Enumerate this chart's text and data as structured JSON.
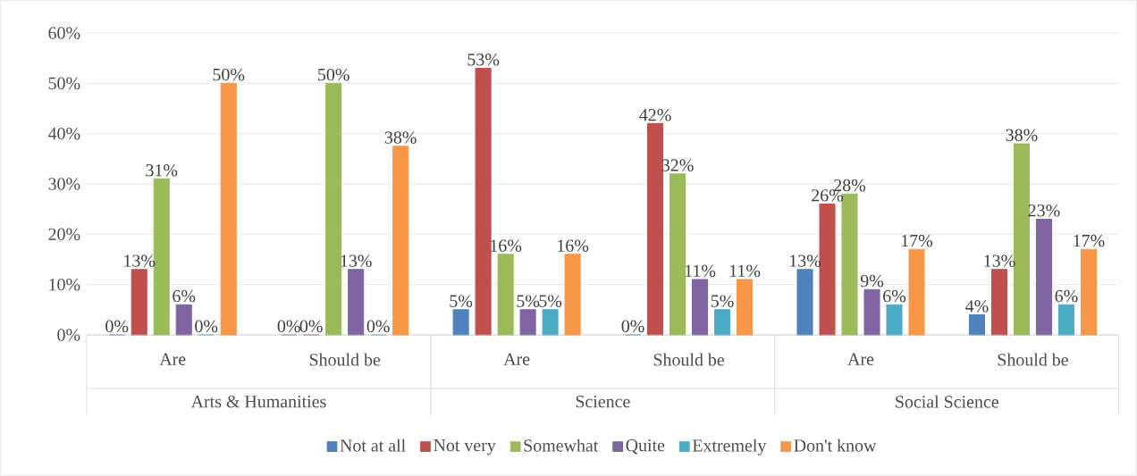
{
  "chart_data": {
    "type": "bar",
    "categories": [
      "Are",
      "Should be",
      "Are",
      "Should be",
      "Are",
      "Should be"
    ],
    "annotations": [
      "Arts & Humanities",
      "Science",
      "Social Science"
    ],
    "series": [
      {
        "name": "Not at all",
        "color": "#4f81bd",
        "values": [
          0,
          0,
          5,
          0,
          13,
          4
        ],
        "value_labels": [
          "0%",
          "0%",
          "5%",
          "0%",
          "13%",
          "4%"
        ]
      },
      {
        "name": "Not very",
        "color": "#c0504d",
        "values": [
          13,
          0,
          53,
          42,
          26,
          13
        ],
        "value_labels": [
          "13%",
          "0%",
          "53%",
          "42%",
          "26%",
          "13%"
        ]
      },
      {
        "name": "Somewhat",
        "color": "#9bbb59",
        "values": [
          31,
          50,
          16,
          32,
          28,
          38
        ],
        "value_labels": [
          "31%",
          "50%",
          "16%",
          "32%",
          "28%",
          "38%"
        ]
      },
      {
        "name": "Quite",
        "color": "#8064a2",
        "values": [
          6,
          13,
          5,
          11,
          9,
          23
        ],
        "value_labels": [
          "6%",
          "13%",
          "5%",
          "11%",
          "9%",
          "23%"
        ]
      },
      {
        "name": "Extremely",
        "color": "#4bacc6",
        "values": [
          0,
          0,
          5,
          5,
          6,
          6
        ],
        "value_labels": [
          "0%",
          "0%",
          "5%",
          "5%",
          "6%",
          "6%"
        ]
      },
      {
        "name": "Don't know",
        "color": "#f79646",
        "values": [
          50,
          37.5,
          16,
          11,
          17,
          17
        ],
        "value_labels": [
          "50%",
          "38%",
          "16%",
          "11%",
          "17%",
          "17%"
        ]
      }
    ],
    "ylim": [
      0,
      60
    ],
    "yticks": [
      {
        "value": 0,
        "label": "0%"
      },
      {
        "value": 10,
        "label": "10%"
      },
      {
        "value": 20,
        "label": "20%"
      },
      {
        "value": 30,
        "label": "30%"
      },
      {
        "value": 40,
        "label": "40%"
      },
      {
        "value": 50,
        "label": "50%"
      },
      {
        "value": 60,
        "label": "60%"
      }
    ],
    "grid": "y",
    "legend": "bottom"
  }
}
